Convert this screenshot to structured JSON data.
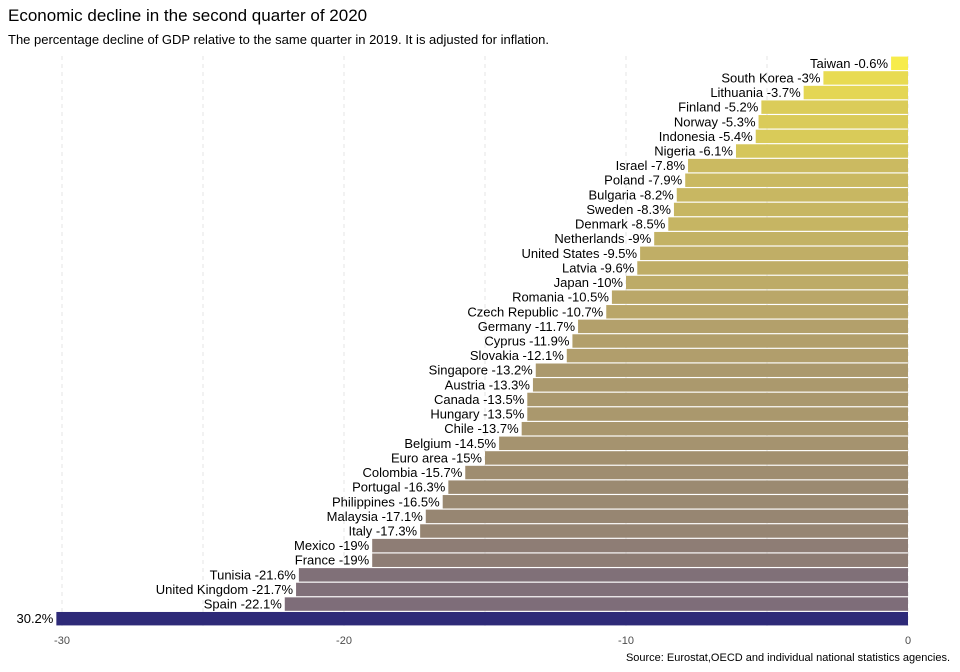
{
  "header": {
    "title": "Economic decline in the second quarter of 2020",
    "subtitle": "The percentage decline of GDP relative to the same quarter in 2019. It is adjusted for inflation."
  },
  "footer": {
    "caption": "Source: Eurostat,OECD and individual national statistics agencies."
  },
  "chart_data": {
    "type": "bar",
    "orientation": "horizontal",
    "title": "Economic decline in the second quarter of 2020",
    "subtitle": "The percentage decline of GDP relative to the same quarter in 2019. It is adjusted for inflation.",
    "caption": "Source: Eurostat,OECD and individual national statistics agencies.",
    "xlabel": "",
    "ylabel": "",
    "xlim": [
      -31,
      0
    ],
    "x_ticks": [
      -30,
      -20,
      -10,
      0
    ],
    "x_tick_labels": [
      "-30",
      "-20",
      "-10",
      "0"
    ],
    "grid": "vertical dashed",
    "legend": "none",
    "color_scale": [
      "#2e2a78",
      "#f7ec4b"
    ],
    "categories": [
      "Taiwan",
      "South Korea",
      "Lithuania",
      "Finland",
      "Norway",
      "Indonesia",
      "Nigeria",
      "Israel",
      "Poland",
      "Bulgaria",
      "Sweden",
      "Denmark",
      "Netherlands",
      "United States",
      "Latvia",
      "Japan",
      "Romania",
      "Czech Republic",
      "Germany",
      "Cyprus",
      "Slovakia",
      "Singapore",
      "Austria",
      "Canada",
      "Hungary",
      "Chile",
      "Belgium",
      "Euro area",
      "Colombia",
      "Portugal",
      "Philippines",
      "Malaysia",
      "Italy",
      "Mexico",
      "France",
      "Tunisia",
      "United Kingdom",
      "Spain",
      ""
    ],
    "values": [
      -0.6,
      -3,
      -3.7,
      -5.2,
      -5.3,
      -5.4,
      -6.1,
      -7.8,
      -7.9,
      -8.2,
      -8.3,
      -8.5,
      -9,
      -9.5,
      -9.6,
      -10,
      -10.5,
      -10.7,
      -11.7,
      -11.9,
      -12.1,
      -13.2,
      -13.3,
      -13.5,
      -13.5,
      -13.7,
      -14.5,
      -15,
      -15.7,
      -16.3,
      -16.5,
      -17.1,
      -17.3,
      -19,
      -19,
      -21.6,
      -21.7,
      -22.1,
      -30.2
    ],
    "labels": [
      "Taiwan -0.6%",
      "South Korea -3%",
      "Lithuania -3.7%",
      "Finland -5.2%",
      "Norway -5.3%",
      "Indonesia -5.4%",
      "Nigeria -6.1%",
      "Israel -7.8%",
      "Poland -7.9%",
      "Bulgaria -8.2%",
      "Sweden -8.3%",
      "Denmark -8.5%",
      "Netherlands -9%",
      "United States -9.5%",
      "Latvia -9.6%",
      "Japan -10%",
      "Romania -10.5%",
      "Czech Republic -10.7%",
      "Germany -11.7%",
      "Cyprus -11.9%",
      "Slovakia -12.1%",
      "Singapore -13.2%",
      "Austria -13.3%",
      "Canada -13.5%",
      "Hungary -13.5%",
      "Chile -13.7%",
      "Belgium -14.5%",
      "Euro area -15%",
      "Colombia -15.7%",
      "Portugal -16.3%",
      "Philippines -16.5%",
      "Malaysia -17.1%",
      "Italy -17.3%",
      "Mexico -19%",
      "France -19%",
      "Tunisia -21.6%",
      "United Kingdom -21.7%",
      "Spain -22.1%",
      "30.2%"
    ]
  }
}
